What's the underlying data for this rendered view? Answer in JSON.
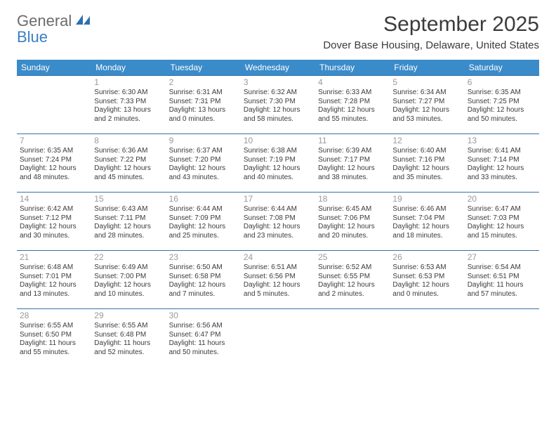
{
  "logo": {
    "word1": "General",
    "word2": "Blue"
  },
  "title": "September 2025",
  "location": "Dover Base Housing, Delaware, United States",
  "colors": {
    "header_bg": "#3a8bc9",
    "header_text": "#ffffff",
    "divider": "#3a6fa5",
    "daynum": "#9a9a9a",
    "body_text": "#3b3b3b",
    "logo_gray": "#6b6b6b",
    "logo_blue": "#3a7fc4"
  },
  "weekdays": [
    "Sunday",
    "Monday",
    "Tuesday",
    "Wednesday",
    "Thursday",
    "Friday",
    "Saturday"
  ],
  "weeks": [
    [
      null,
      {
        "n": "1",
        "sunrise": "Sunrise: 6:30 AM",
        "sunset": "Sunset: 7:33 PM",
        "day1": "Daylight: 13 hours",
        "day2": "and 2 minutes."
      },
      {
        "n": "2",
        "sunrise": "Sunrise: 6:31 AM",
        "sunset": "Sunset: 7:31 PM",
        "day1": "Daylight: 13 hours",
        "day2": "and 0 minutes."
      },
      {
        "n": "3",
        "sunrise": "Sunrise: 6:32 AM",
        "sunset": "Sunset: 7:30 PM",
        "day1": "Daylight: 12 hours",
        "day2": "and 58 minutes."
      },
      {
        "n": "4",
        "sunrise": "Sunrise: 6:33 AM",
        "sunset": "Sunset: 7:28 PM",
        "day1": "Daylight: 12 hours",
        "day2": "and 55 minutes."
      },
      {
        "n": "5",
        "sunrise": "Sunrise: 6:34 AM",
        "sunset": "Sunset: 7:27 PM",
        "day1": "Daylight: 12 hours",
        "day2": "and 53 minutes."
      },
      {
        "n": "6",
        "sunrise": "Sunrise: 6:35 AM",
        "sunset": "Sunset: 7:25 PM",
        "day1": "Daylight: 12 hours",
        "day2": "and 50 minutes."
      }
    ],
    [
      {
        "n": "7",
        "sunrise": "Sunrise: 6:35 AM",
        "sunset": "Sunset: 7:24 PM",
        "day1": "Daylight: 12 hours",
        "day2": "and 48 minutes."
      },
      {
        "n": "8",
        "sunrise": "Sunrise: 6:36 AM",
        "sunset": "Sunset: 7:22 PM",
        "day1": "Daylight: 12 hours",
        "day2": "and 45 minutes."
      },
      {
        "n": "9",
        "sunrise": "Sunrise: 6:37 AM",
        "sunset": "Sunset: 7:20 PM",
        "day1": "Daylight: 12 hours",
        "day2": "and 43 minutes."
      },
      {
        "n": "10",
        "sunrise": "Sunrise: 6:38 AM",
        "sunset": "Sunset: 7:19 PM",
        "day1": "Daylight: 12 hours",
        "day2": "and 40 minutes."
      },
      {
        "n": "11",
        "sunrise": "Sunrise: 6:39 AM",
        "sunset": "Sunset: 7:17 PM",
        "day1": "Daylight: 12 hours",
        "day2": "and 38 minutes."
      },
      {
        "n": "12",
        "sunrise": "Sunrise: 6:40 AM",
        "sunset": "Sunset: 7:16 PM",
        "day1": "Daylight: 12 hours",
        "day2": "and 35 minutes."
      },
      {
        "n": "13",
        "sunrise": "Sunrise: 6:41 AM",
        "sunset": "Sunset: 7:14 PM",
        "day1": "Daylight: 12 hours",
        "day2": "and 33 minutes."
      }
    ],
    [
      {
        "n": "14",
        "sunrise": "Sunrise: 6:42 AM",
        "sunset": "Sunset: 7:12 PM",
        "day1": "Daylight: 12 hours",
        "day2": "and 30 minutes."
      },
      {
        "n": "15",
        "sunrise": "Sunrise: 6:43 AM",
        "sunset": "Sunset: 7:11 PM",
        "day1": "Daylight: 12 hours",
        "day2": "and 28 minutes."
      },
      {
        "n": "16",
        "sunrise": "Sunrise: 6:44 AM",
        "sunset": "Sunset: 7:09 PM",
        "day1": "Daylight: 12 hours",
        "day2": "and 25 minutes."
      },
      {
        "n": "17",
        "sunrise": "Sunrise: 6:44 AM",
        "sunset": "Sunset: 7:08 PM",
        "day1": "Daylight: 12 hours",
        "day2": "and 23 minutes."
      },
      {
        "n": "18",
        "sunrise": "Sunrise: 6:45 AM",
        "sunset": "Sunset: 7:06 PM",
        "day1": "Daylight: 12 hours",
        "day2": "and 20 minutes."
      },
      {
        "n": "19",
        "sunrise": "Sunrise: 6:46 AM",
        "sunset": "Sunset: 7:04 PM",
        "day1": "Daylight: 12 hours",
        "day2": "and 18 minutes."
      },
      {
        "n": "20",
        "sunrise": "Sunrise: 6:47 AM",
        "sunset": "Sunset: 7:03 PM",
        "day1": "Daylight: 12 hours",
        "day2": "and 15 minutes."
      }
    ],
    [
      {
        "n": "21",
        "sunrise": "Sunrise: 6:48 AM",
        "sunset": "Sunset: 7:01 PM",
        "day1": "Daylight: 12 hours",
        "day2": "and 13 minutes."
      },
      {
        "n": "22",
        "sunrise": "Sunrise: 6:49 AM",
        "sunset": "Sunset: 7:00 PM",
        "day1": "Daylight: 12 hours",
        "day2": "and 10 minutes."
      },
      {
        "n": "23",
        "sunrise": "Sunrise: 6:50 AM",
        "sunset": "Sunset: 6:58 PM",
        "day1": "Daylight: 12 hours",
        "day2": "and 7 minutes."
      },
      {
        "n": "24",
        "sunrise": "Sunrise: 6:51 AM",
        "sunset": "Sunset: 6:56 PM",
        "day1": "Daylight: 12 hours",
        "day2": "and 5 minutes."
      },
      {
        "n": "25",
        "sunrise": "Sunrise: 6:52 AM",
        "sunset": "Sunset: 6:55 PM",
        "day1": "Daylight: 12 hours",
        "day2": "and 2 minutes."
      },
      {
        "n": "26",
        "sunrise": "Sunrise: 6:53 AM",
        "sunset": "Sunset: 6:53 PM",
        "day1": "Daylight: 12 hours",
        "day2": "and 0 minutes."
      },
      {
        "n": "27",
        "sunrise": "Sunrise: 6:54 AM",
        "sunset": "Sunset: 6:51 PM",
        "day1": "Daylight: 11 hours",
        "day2": "and 57 minutes."
      }
    ],
    [
      {
        "n": "28",
        "sunrise": "Sunrise: 6:55 AM",
        "sunset": "Sunset: 6:50 PM",
        "day1": "Daylight: 11 hours",
        "day2": "and 55 minutes."
      },
      {
        "n": "29",
        "sunrise": "Sunrise: 6:55 AM",
        "sunset": "Sunset: 6:48 PM",
        "day1": "Daylight: 11 hours",
        "day2": "and 52 minutes."
      },
      {
        "n": "30",
        "sunrise": "Sunrise: 6:56 AM",
        "sunset": "Sunset: 6:47 PM",
        "day1": "Daylight: 11 hours",
        "day2": "and 50 minutes."
      },
      null,
      null,
      null,
      null
    ]
  ]
}
